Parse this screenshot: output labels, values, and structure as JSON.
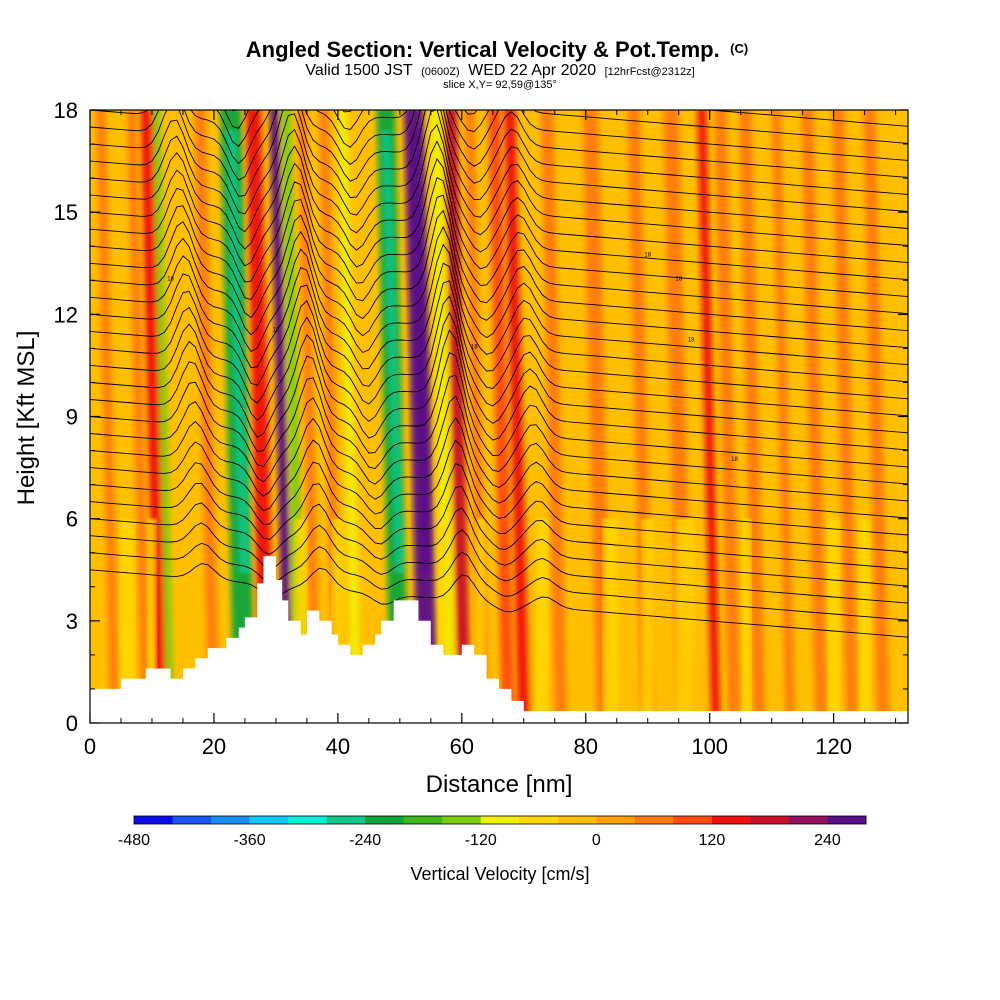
{
  "chart_data": {
    "type": "heatmap",
    "title": "Angled Section: Vertical Velocity & Pot.Temp.",
    "title_suffix": "(C)",
    "subtitle_prefix": "Valid 1500 JST",
    "subtitle_small": "(0600Z)",
    "subtitle_date": "WED 22 Apr 2020",
    "subtitle_fcst": "[12hrFcst@2312z]",
    "slice_label": "slice X,Y= 92,59@135°",
    "xlabel": "Distance [nm]",
    "ylabel": "Height [Kft MSL]",
    "xlim": [
      0,
      132
    ],
    "ylim": [
      0,
      18
    ],
    "x_ticks": [
      "0",
      "20",
      "40",
      "60",
      "80",
      "100",
      "120"
    ],
    "y_ticks": [
      "0",
      "3",
      "6",
      "9",
      "12",
      "15",
      "18"
    ],
    "background_value": -40,
    "columns": [
      {
        "x": 4,
        "w": 1.5,
        "value": 40
      },
      {
        "x": 9,
        "w": 1.5,
        "value": 40
      },
      {
        "x": 11.5,
        "w": 2.2,
        "value": 140
      },
      {
        "x": 13,
        "w": 1.2,
        "value": -160
      },
      {
        "x": 20,
        "w": 1.8,
        "value": 40
      },
      {
        "x": 25,
        "w": 3.5,
        "value": -220
      },
      {
        "x": 28.6,
        "w": 2.5,
        "value": 140
      },
      {
        "x": 32,
        "w": 1.5,
        "value": 260
      },
      {
        "x": 34,
        "w": 1.5,
        "value": -130
      },
      {
        "x": 36.5,
        "w": 1.5,
        "value": 40
      },
      {
        "x": 40,
        "w": 1.5,
        "value": 40
      },
      {
        "x": 43,
        "w": 1.5,
        "value": -100
      },
      {
        "x": 50,
        "w": 3,
        "value": -240
      },
      {
        "x": 54.5,
        "w": 3.2,
        "value": 290
      },
      {
        "x": 58,
        "w": 1.8,
        "value": -100
      },
      {
        "x": 60.5,
        "w": 2,
        "value": 160
      },
      {
        "x": 63.5,
        "w": 1.5,
        "value": 40
      },
      {
        "x": 67.5,
        "w": 2,
        "value": 90
      },
      {
        "x": 70,
        "w": 1.8,
        "value": 130
      },
      {
        "x": 76,
        "w": 2,
        "value": 40
      },
      {
        "x": 83,
        "w": 2.5,
        "value": 40
      },
      {
        "x": 90,
        "w": 2,
        "value": 40
      },
      {
        "x": 96,
        "w": 2.5,
        "value": 40
      },
      {
        "x": 101,
        "w": 1.5,
        "value": 130
      },
      {
        "x": 104,
        "w": 2,
        "value": 70
      },
      {
        "x": 108,
        "w": 2,
        "value": 40
      },
      {
        "x": 113,
        "w": 1.5,
        "value": 40
      },
      {
        "x": 118,
        "w": 2,
        "value": 40
      },
      {
        "x": 123,
        "w": 2,
        "value": 40
      },
      {
        "x": 128,
        "w": 2,
        "value": 40
      }
    ],
    "low_yellow": [
      {
        "x": 6,
        "w": 2.5
      },
      {
        "x": 10,
        "w": 1.5
      },
      {
        "x": 34,
        "w": 2
      },
      {
        "x": 40,
        "w": 2
      },
      {
        "x": 57,
        "w": 1.5
      },
      {
        "x": 63,
        "w": 1.5
      },
      {
        "x": 73,
        "w": 2
      },
      {
        "x": 84,
        "w": 2.5
      },
      {
        "x": 90,
        "w": 2
      },
      {
        "x": 96,
        "w": 3
      },
      {
        "x": 106,
        "w": 1.5
      },
      {
        "x": 120,
        "w": 2
      },
      {
        "x": 125,
        "w": 2
      }
    ],
    "terrain": [
      [
        0,
        1
      ],
      [
        5,
        1
      ],
      [
        5,
        1.3
      ],
      [
        9,
        1.3
      ],
      [
        9,
        1.6
      ],
      [
        13,
        1.6
      ],
      [
        13,
        1.3
      ],
      [
        15,
        1.3
      ],
      [
        15,
        1.6
      ],
      [
        17,
        1.6
      ],
      [
        17,
        1.9
      ],
      [
        19,
        1.9
      ],
      [
        19,
        2.2
      ],
      [
        22,
        2.2
      ],
      [
        22,
        2.5
      ],
      [
        24,
        2.5
      ],
      [
        24,
        2.8
      ],
      [
        25,
        2.8
      ],
      [
        25,
        3.1
      ],
      [
        27,
        3.1
      ],
      [
        27,
        4.1
      ],
      [
        28,
        4.1
      ],
      [
        28,
        4.9
      ],
      [
        30,
        4.9
      ],
      [
        30,
        4.2
      ],
      [
        31,
        4.2
      ],
      [
        31,
        3.6
      ],
      [
        32,
        3.6
      ],
      [
        32,
        3.0
      ],
      [
        34,
        3.0
      ],
      [
        34,
        2.6
      ],
      [
        35,
        2.6
      ],
      [
        35,
        3.3
      ],
      [
        37,
        3.3
      ],
      [
        37,
        3.0
      ],
      [
        39,
        3.0
      ],
      [
        39,
        2.6
      ],
      [
        40,
        2.6
      ],
      [
        40,
        2.3
      ],
      [
        42,
        2.3
      ],
      [
        42,
        2.0
      ],
      [
        44,
        2.0
      ],
      [
        44,
        2.3
      ],
      [
        46,
        2.3
      ],
      [
        46,
        2.6
      ],
      [
        47,
        2.6
      ],
      [
        47,
        3.0
      ],
      [
        49,
        3.0
      ],
      [
        49,
        3.6
      ],
      [
        53,
        3.6
      ],
      [
        53,
        3.0
      ],
      [
        55,
        3.0
      ],
      [
        55,
        2.3
      ],
      [
        57,
        2.3
      ],
      [
        57,
        2.0
      ],
      [
        60,
        2.0
      ],
      [
        60,
        2.3
      ],
      [
        62,
        2.3
      ],
      [
        62,
        2.0
      ],
      [
        64,
        2.0
      ],
      [
        64,
        1.3
      ],
      [
        66,
        1.3
      ],
      [
        66,
        1.0
      ],
      [
        68,
        1.0
      ],
      [
        68,
        0.65
      ],
      [
        70,
        0.65
      ],
      [
        70,
        0.35
      ],
      [
        132,
        0.35
      ]
    ],
    "isentrope_label": "18",
    "colorbar": {
      "label": "Vertical Velocity [cm/s]",
      "levels": [
        -480,
        -440,
        -400,
        -360,
        -320,
        -280,
        -240,
        -200,
        -160,
        -120,
        -80,
        -40,
        0,
        40,
        80,
        120,
        160,
        200,
        240,
        280
      ],
      "colors": [
        "#0b0bf0",
        "#1b55f5",
        "#1e8ef7",
        "#14c8f8",
        "#00f0d8",
        "#12c88a",
        "#10a43a",
        "#3fb820",
        "#7ccc10",
        "#f0f000",
        "#ffd800",
        "#ffbf00",
        "#ff9f00",
        "#ff7a10",
        "#ff4a10",
        "#f01010",
        "#c8102a",
        "#961060",
        "#5a108a"
      ],
      "tick_labels": [
        "-480",
        "-360",
        "-240",
        "-120",
        "0",
        "120",
        "240"
      ]
    }
  }
}
